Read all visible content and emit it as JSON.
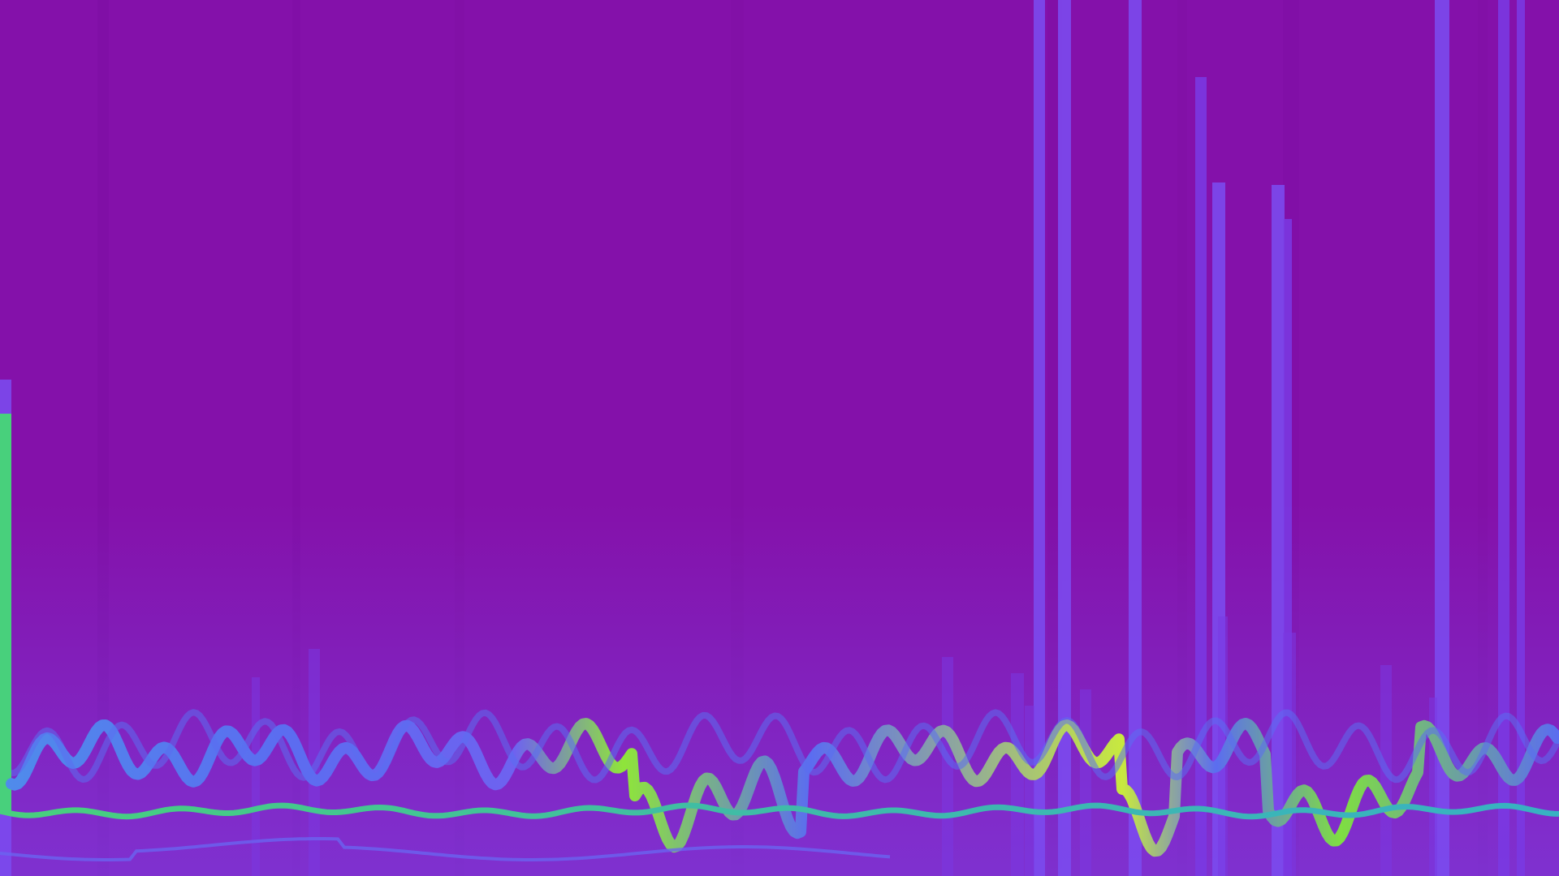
{
  "visualization": {
    "colors": {
      "background": "#8411AA",
      "background_shade": "#7E0FA3",
      "spike_violet": "#7B4BEF",
      "spike_violet_dim": "#7A39E2",
      "wave_blue": "#5B6DF0",
      "wave_teal": "#38B2C2",
      "wave_green": "#48D07C",
      "wave_lime": "#8FE53A",
      "wave_yellow": "#C8E93F",
      "low_trace": "#6A64F0"
    }
  }
}
